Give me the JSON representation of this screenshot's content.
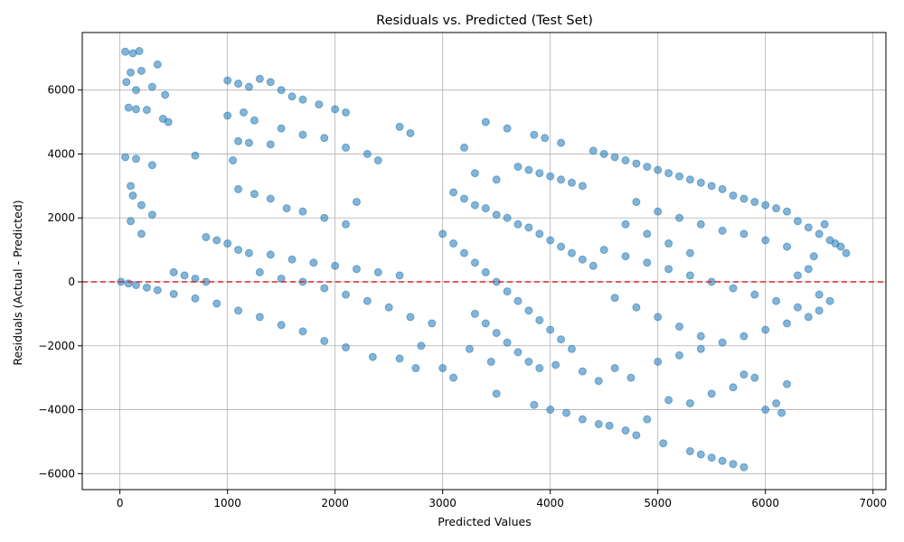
{
  "chart_data": {
    "type": "scatter",
    "title": "Residuals vs. Predicted (Test Set)",
    "xlabel": "Predicted Values",
    "ylabel": "Residuals (Actual - Predicted)",
    "xlim": [
      -350,
      7120
    ],
    "ylim": [
      -6500,
      7800
    ],
    "xticks": [
      0,
      1000,
      2000,
      3000,
      4000,
      5000,
      6000,
      7000
    ],
    "xtick_labels": [
      "0",
      "1000",
      "2000",
      "3000",
      "4000",
      "5000",
      "6000",
      "7000"
    ],
    "yticks": [
      -6000,
      -4000,
      -2000,
      0,
      2000,
      4000,
      6000
    ],
    "ytick_labels": [
      "−6000",
      "−4000",
      "−2000",
      "0",
      "2000",
      "4000",
      "6000"
    ],
    "grid": true,
    "marker_color": "#1f77b4",
    "marker_alpha": 0.55,
    "reference_line": {
      "y": 0,
      "color": "#d62728",
      "style": "dashed"
    },
    "series": [
      {
        "points": [
          [
            10,
            0
          ],
          [
            80,
            -50
          ],
          [
            150,
            -100
          ],
          [
            250,
            -180
          ],
          [
            350,
            -260
          ],
          [
            500,
            -380
          ],
          [
            700,
            -520
          ],
          [
            900,
            -680
          ],
          [
            1100,
            -900
          ],
          [
            1300,
            -1100
          ],
          [
            1500,
            -1350
          ],
          [
            1700,
            -1550
          ],
          [
            1900,
            -1850
          ],
          [
            2100,
            -2050
          ],
          [
            2350,
            -2350
          ],
          [
            50,
            7200
          ],
          [
            120,
            7150
          ],
          [
            180,
            7220
          ],
          [
            100,
            6550
          ],
          [
            200,
            6600
          ],
          [
            60,
            6250
          ],
          [
            150,
            6000
          ],
          [
            300,
            6100
          ],
          [
            350,
            6800
          ],
          [
            420,
            5850
          ],
          [
            80,
            5450
          ],
          [
            150,
            5400
          ],
          [
            250,
            5380
          ],
          [
            400,
            5100
          ],
          [
            450,
            5000
          ],
          [
            1000,
            6300
          ],
          [
            1100,
            6200
          ],
          [
            1200,
            6100
          ],
          [
            1300,
            6350
          ],
          [
            1400,
            6250
          ],
          [
            1500,
            6000
          ],
          [
            1600,
            5800
          ],
          [
            1700,
            5700
          ],
          [
            1850,
            5550
          ],
          [
            2000,
            5400
          ],
          [
            2100,
            5300
          ],
          [
            1000,
            5200
          ],
          [
            1150,
            5300
          ],
          [
            1250,
            5050
          ],
          [
            1500,
            4800
          ],
          [
            1700,
            4600
          ],
          [
            1900,
            4500
          ],
          [
            2100,
            4200
          ],
          [
            2300,
            4000
          ],
          [
            2400,
            3800
          ],
          [
            2600,
            4850
          ],
          [
            2700,
            4650
          ],
          [
            1100,
            4400
          ],
          [
            1200,
            4350
          ],
          [
            1400,
            4300
          ],
          [
            700,
            3950
          ],
          [
            1050,
            3800
          ],
          [
            50,
            3900
          ],
          [
            150,
            3850
          ],
          [
            300,
            3650
          ],
          [
            1100,
            2900
          ],
          [
            1250,
            2750
          ],
          [
            1400,
            2600
          ],
          [
            1550,
            2300
          ],
          [
            1700,
            2200
          ],
          [
            1900,
            2000
          ],
          [
            2100,
            1800
          ],
          [
            2200,
            2500
          ],
          [
            100,
            3000
          ],
          [
            120,
            2700
          ],
          [
            200,
            2400
          ],
          [
            300,
            2100
          ],
          [
            100,
            1900
          ],
          [
            200,
            1500
          ],
          [
            800,
            1400
          ],
          [
            900,
            1300
          ],
          [
            1000,
            1200
          ],
          [
            1100,
            1000
          ],
          [
            1200,
            900
          ],
          [
            1400,
            850
          ],
          [
            1600,
            700
          ],
          [
            1800,
            600
          ],
          [
            2000,
            500
          ],
          [
            2200,
            400
          ],
          [
            2400,
            300
          ],
          [
            2600,
            200
          ],
          [
            500,
            300
          ],
          [
            600,
            200
          ],
          [
            700,
            100
          ],
          [
            800,
            0
          ],
          [
            1300,
            300
          ],
          [
            1500,
            100
          ],
          [
            1700,
            0
          ],
          [
            1900,
            -200
          ],
          [
            2100,
            -400
          ],
          [
            2300,
            -600
          ],
          [
            2500,
            -800
          ],
          [
            2700,
            -1100
          ],
          [
            2900,
            -1300
          ],
          [
            2800,
            -2000
          ],
          [
            2600,
            -2400
          ],
          [
            2750,
            -2700
          ],
          [
            3000,
            -2700
          ],
          [
            3100,
            -3000
          ],
          [
            3250,
            -2100
          ],
          [
            3450,
            -2500
          ],
          [
            3500,
            -3500
          ],
          [
            3200,
            4200
          ],
          [
            3400,
            5000
          ],
          [
            3600,
            4800
          ],
          [
            3850,
            4600
          ],
          [
            3950,
            4500
          ],
          [
            4100,
            4350
          ],
          [
            3300,
            3400
          ],
          [
            3500,
            3200
          ],
          [
            3700,
            3600
          ],
          [
            3800,
            3500
          ],
          [
            3900,
            3400
          ],
          [
            4000,
            3300
          ],
          [
            4100,
            3200
          ],
          [
            4200,
            3100
          ],
          [
            4300,
            3000
          ],
          [
            4400,
            4100
          ],
          [
            4500,
            4000
          ],
          [
            4600,
            3900
          ],
          [
            4700,
            3800
          ],
          [
            4800,
            3700
          ],
          [
            4900,
            3600
          ],
          [
            3100,
            2800
          ],
          [
            3200,
            2600
          ],
          [
            3300,
            2400
          ],
          [
            3400,
            2300
          ],
          [
            3500,
            2100
          ],
          [
            3600,
            2000
          ],
          [
            3700,
            1800
          ],
          [
            3800,
            1700
          ],
          [
            3900,
            1500
          ],
          [
            4000,
            1300
          ],
          [
            4100,
            1100
          ],
          [
            4200,
            900
          ],
          [
            4300,
            700
          ],
          [
            4400,
            500
          ],
          [
            3000,
            1500
          ],
          [
            3100,
            1200
          ],
          [
            3200,
            900
          ],
          [
            3300,
            600
          ],
          [
            3400,
            300
          ],
          [
            3500,
            0
          ],
          [
            3600,
            -300
          ],
          [
            3700,
            -600
          ],
          [
            3800,
            -900
          ],
          [
            3900,
            -1200
          ],
          [
            4000,
            -1500
          ],
          [
            4100,
            -1800
          ],
          [
            4200,
            -2100
          ],
          [
            3300,
            -1000
          ],
          [
            3400,
            -1300
          ],
          [
            3500,
            -1600
          ],
          [
            3600,
            -1900
          ],
          [
            3700,
            -2200
          ],
          [
            3800,
            -2500
          ],
          [
            3900,
            -2700
          ],
          [
            4050,
            -2600
          ],
          [
            4300,
            -2800
          ],
          [
            4450,
            -3100
          ],
          [
            4600,
            -2700
          ],
          [
            4750,
            -3000
          ],
          [
            3850,
            -3850
          ],
          [
            4000,
            -4000
          ],
          [
            4150,
            -4100
          ],
          [
            4300,
            -4300
          ],
          [
            4450,
            -4450
          ],
          [
            4550,
            -4500
          ],
          [
            4700,
            -4650
          ],
          [
            4800,
            -4800
          ],
          [
            4900,
            -4300
          ],
          [
            5050,
            -5050
          ],
          [
            5300,
            -5300
          ],
          [
            5400,
            -5400
          ],
          [
            5500,
            -5500
          ],
          [
            5600,
            -5600
          ],
          [
            5700,
            -5700
          ],
          [
            5800,
            -5800
          ],
          [
            5100,
            -3700
          ],
          [
            5300,
            -3800
          ],
          [
            5500,
            -3500
          ],
          [
            5700,
            -3300
          ],
          [
            5800,
            -2900
          ],
          [
            5900,
            -3000
          ],
          [
            6000,
            -4000
          ],
          [
            6100,
            -3800
          ],
          [
            6150,
            -4100
          ],
          [
            6200,
            -3200
          ],
          [
            5000,
            -2500
          ],
          [
            5200,
            -2300
          ],
          [
            5400,
            -2100
          ],
          [
            5600,
            -1900
          ],
          [
            5800,
            -1700
          ],
          [
            6000,
            -1500
          ],
          [
            6200,
            -1300
          ],
          [
            6400,
            -1100
          ],
          [
            6500,
            -900
          ],
          [
            6600,
            -600
          ],
          [
            5000,
            3500
          ],
          [
            5100,
            3400
          ],
          [
            5200,
            3300
          ],
          [
            5300,
            3200
          ],
          [
            5400,
            3100
          ],
          [
            5500,
            3000
          ],
          [
            5600,
            2900
          ],
          [
            5700,
            2700
          ],
          [
            5800,
            2600
          ],
          [
            5900,
            2500
          ],
          [
            6000,
            2400
          ],
          [
            6100,
            2300
          ],
          [
            6200,
            2200
          ],
          [
            4800,
            2500
          ],
          [
            5000,
            2200
          ],
          [
            5200,
            2000
          ],
          [
            5400,
            1800
          ],
          [
            5600,
            1600
          ],
          [
            5800,
            1500
          ],
          [
            6000,
            1300
          ],
          [
            6200,
            1100
          ],
          [
            6300,
            1900
          ],
          [
            6400,
            1700
          ],
          [
            6500,
            1500
          ],
          [
            6600,
            1300
          ],
          [
            6700,
            1100
          ],
          [
            6750,
            900
          ],
          [
            4500,
            1000
          ],
          [
            4700,
            800
          ],
          [
            4900,
            600
          ],
          [
            5100,
            400
          ],
          [
            5300,
            200
          ],
          [
            5500,
            0
          ],
          [
            5700,
            -200
          ],
          [
            5900,
            -400
          ],
          [
            6100,
            -600
          ],
          [
            6300,
            -800
          ],
          [
            4600,
            -500
          ],
          [
            4800,
            -800
          ],
          [
            5000,
            -1100
          ],
          [
            5200,
            -1400
          ],
          [
            5400,
            -1700
          ],
          [
            4700,
            1800
          ],
          [
            4900,
            1500
          ],
          [
            5100,
            1200
          ],
          [
            5300,
            900
          ],
          [
            6450,
            800
          ],
          [
            6550,
            1800
          ],
          [
            6650,
            1200
          ],
          [
            6500,
            -400
          ],
          [
            6400,
            400
          ],
          [
            6300,
            200
          ]
        ]
      }
    ]
  }
}
